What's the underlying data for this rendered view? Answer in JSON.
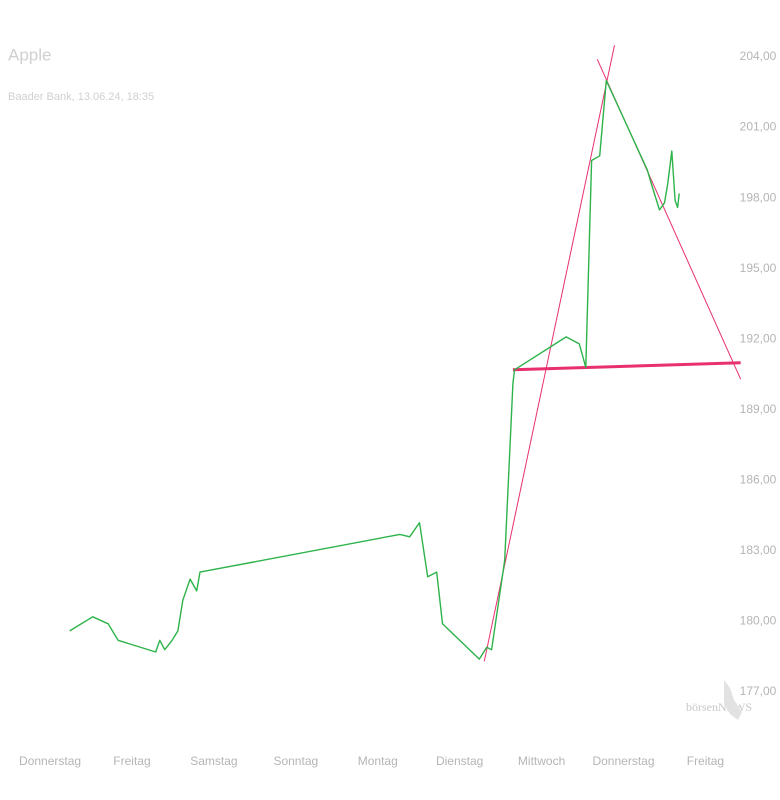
{
  "chart_data": {
    "type": "line",
    "title": "Apple",
    "subtitle": "Baader Bank, 13.06.24, 18:35",
    "watermark": "börsenNEWS",
    "x": [
      0.24,
      0.52,
      0.71,
      0.83,
      1.29,
      1.34,
      1.4,
      1.49,
      1.56,
      1.62,
      1.71,
      1.79,
      1.83,
      4.27,
      4.39,
      4.51,
      4.61,
      4.72,
      4.79,
      5.24,
      5.33,
      5.39,
      5.55,
      5.65,
      5.67,
      6.3,
      6.46,
      6.54,
      6.61,
      6.71,
      6.79,
      7.29,
      7.34,
      7.44,
      7.5,
      7.54,
      7.59,
      7.63,
      7.66,
      7.68
    ],
    "series": [
      {
        "color": "#2db34a",
        "values": [
          179.6,
          180.2,
          179.9,
          179.2,
          178.7,
          179.2,
          178.8,
          179.2,
          179.6,
          180.9,
          181.8,
          181.3,
          182.1,
          183.7,
          183.6,
          184.2,
          181.9,
          182.1,
          179.9,
          178.4,
          178.9,
          178.8,
          182.6,
          190.1,
          190.7,
          192.1,
          191.8,
          190.8,
          199.6,
          199.8,
          203.0,
          199.2,
          198.6,
          197.5,
          197.8,
          198.6,
          200.0,
          197.9,
          197.6,
          198.2
        ]
      }
    ],
    "trendlines": [
      {
        "color": "#e8306e",
        "width": 1,
        "x": [
          5.3,
          6.89
        ],
        "y": [
          178.3,
          204.5
        ]
      },
      {
        "color": "#e8306e",
        "width": 1,
        "x": [
          6.68,
          8.43
        ],
        "y": [
          203.9,
          190.3
        ]
      },
      {
        "color": "#e8306e",
        "width": 3,
        "x": [
          5.65,
          8.43
        ],
        "y": [
          190.7,
          191.0
        ]
      }
    ],
    "xlim": [
      -0.55,
      8.3
    ],
    "xticks": [
      {
        "value": 0,
        "label": "Donnerstag"
      },
      {
        "value": 1,
        "label": "Freitag"
      },
      {
        "value": 2,
        "label": "Samstag"
      },
      {
        "value": 3,
        "label": "Sonntag"
      },
      {
        "value": 4,
        "label": "Montag"
      },
      {
        "value": 5,
        "label": "Dienstag"
      },
      {
        "value": 6,
        "label": "Mittwoch"
      },
      {
        "value": 7,
        "label": "Donnerstag"
      },
      {
        "value": 8,
        "label": "Freitag"
      }
    ],
    "ylim": [
      175.5,
      205.5
    ],
    "yticks": [
      {
        "value": 177,
        "label": "177,00"
      },
      {
        "value": 180,
        "label": "180,00"
      },
      {
        "value": 183,
        "label": "183,00"
      },
      {
        "value": 186,
        "label": "186,00"
      },
      {
        "value": 189,
        "label": "189,00"
      },
      {
        "value": 192,
        "label": "192,00"
      },
      {
        "value": 195,
        "label": "195,00"
      },
      {
        "value": 198,
        "label": "198,00"
      },
      {
        "value": 201,
        "label": "201,00"
      },
      {
        "value": 204,
        "label": "204,00"
      }
    ]
  }
}
